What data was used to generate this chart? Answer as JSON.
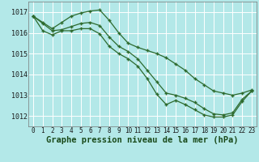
{
  "hours": [
    0,
    1,
    2,
    3,
    4,
    5,
    6,
    7,
    8,
    9,
    10,
    11,
    12,
    13,
    14,
    15,
    16,
    17,
    18,
    19,
    20,
    21,
    22,
    23
  ],
  "line_top": [
    1016.8,
    1016.5,
    1016.2,
    1016.5,
    1016.8,
    1016.95,
    1017.05,
    1017.1,
    1016.6,
    1016.0,
    1015.5,
    1015.3,
    1015.15,
    1015.0,
    1014.8,
    1014.5,
    1014.2,
    1013.8,
    1013.5,
    1013.2,
    1013.1,
    1013.0,
    1013.1,
    1013.25
  ],
  "line_mid": [
    1016.8,
    1016.45,
    1016.1,
    1016.15,
    1016.3,
    1016.45,
    1016.5,
    1016.35,
    1015.8,
    1015.35,
    1015.1,
    1014.75,
    1014.2,
    1013.65,
    1013.1,
    1013.0,
    1012.85,
    1012.65,
    1012.35,
    1012.1,
    1012.05,
    1012.15,
    1012.8,
    1013.2
  ],
  "line_bot": [
    1016.8,
    1016.1,
    1015.9,
    1016.1,
    1016.1,
    1016.2,
    1016.2,
    1015.95,
    1015.35,
    1015.0,
    1014.75,
    1014.4,
    1013.8,
    1013.05,
    1012.55,
    1012.75,
    1012.55,
    1012.3,
    1012.05,
    1011.95,
    1011.95,
    1012.05,
    1012.7,
    1013.2
  ],
  "ylim": [
    1011.5,
    1017.5
  ],
  "yticks": [
    1012,
    1013,
    1014,
    1015,
    1016,
    1017
  ],
  "xlabel": "Graphe pression niveau de la mer (hPa)",
  "line_color": "#2d6a2d",
  "bg_color": "#b3e8e8",
  "grid_color": "#ffffff",
  "tick_fontsize": 5.5,
  "xlabel_fontsize": 7.5
}
